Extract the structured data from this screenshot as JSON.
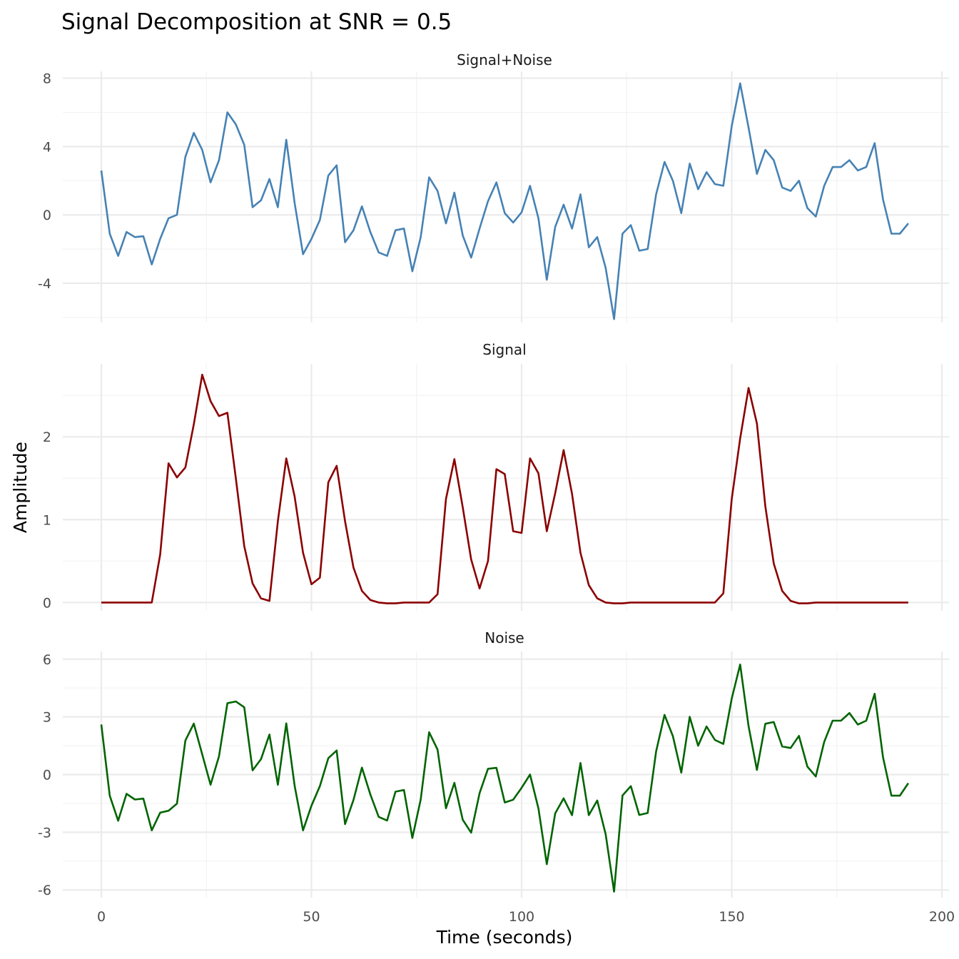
{
  "title": "Signal Decomposition at SNR = 0.5",
  "xlabel": "Time (seconds)",
  "ylabel": "Amplitude",
  "chart_data": [
    {
      "type": "line",
      "strip": "Signal+Noise",
      "color": "#4682B4",
      "x_start": 0,
      "x_step": 2,
      "xlim": [
        0,
        200
      ],
      "xticks": [
        0,
        50,
        100,
        150,
        200
      ],
      "ylim": [
        -6.3,
        8.4
      ],
      "yticks": [
        -4,
        0,
        4,
        8
      ],
      "yminor": [
        -6,
        -2,
        2,
        6
      ],
      "values": [
        2.6,
        -1.1,
        -2.4,
        -1.0,
        -1.3,
        -1.25,
        -2.9,
        -1.4,
        -0.2,
        0.0,
        3.4,
        4.8,
        3.8,
        1.9,
        3.2,
        6.0,
        5.3,
        4.1,
        0.45,
        0.85,
        2.1,
        0.45,
        4.4,
        0.7,
        -2.3,
        -1.4,
        -0.3,
        2.3,
        2.9,
        -1.6,
        -0.9,
        0.5,
        -1.0,
        -2.2,
        -2.4,
        -0.9,
        -0.8,
        -3.3,
        -1.3,
        2.2,
        1.4,
        -0.5,
        1.3,
        -1.2,
        -2.5,
        -0.8,
        0.8,
        1.9,
        0.1,
        -0.45,
        0.15,
        1.7,
        -0.2,
        -3.8,
        -0.7,
        0.6,
        -0.8,
        1.2,
        -1.9,
        -1.3,
        -3.1,
        -6.1,
        -1.1,
        -0.6,
        -2.1,
        -2.0,
        1.2,
        3.1,
        2.0,
        0.1,
        3.0,
        1.5,
        2.5,
        1.8,
        1.7,
        5.2,
        7.7,
        5.1,
        2.4,
        3.8,
        3.2,
        1.6,
        1.4,
        2.0,
        0.4,
        -0.1,
        1.7,
        2.8,
        2.8,
        3.2,
        2.6,
        2.8,
        4.2,
        0.9,
        -1.1,
        -1.1,
        -0.5
      ]
    },
    {
      "type": "line",
      "strip": "Signal",
      "color": "#8B0000",
      "x_start": 0,
      "x_step": 2,
      "xlim": [
        0,
        200
      ],
      "xticks": [
        0,
        50,
        100,
        150,
        200
      ],
      "ylim": [
        -0.1,
        2.88
      ],
      "yticks": [
        0,
        1,
        2
      ],
      "yminor": [
        0.5,
        1.5,
        2.5
      ],
      "values": [
        0,
        0,
        0,
        0,
        0,
        0,
        0,
        0.58,
        1.68,
        1.51,
        1.63,
        2.15,
        2.75,
        2.43,
        2.25,
        2.29,
        1.5,
        0.68,
        0.23,
        0.05,
        0.02,
        0.98,
        1.74,
        1.28,
        0.6,
        0.22,
        0.3,
        1.45,
        1.65,
        0.98,
        0.42,
        0.14,
        0.03,
        0.0,
        -0.01,
        -0.01,
        0,
        0,
        0,
        0,
        0.1,
        1.25,
        1.73,
        1.15,
        0.52,
        0.17,
        0.5,
        1.61,
        1.55,
        0.86,
        0.84,
        1.74,
        1.56,
        0.86,
        1.32,
        1.84,
        1.31,
        0.6,
        0.21,
        0.05,
        0.0,
        -0.01,
        -0.01,
        0,
        0,
        0,
        0,
        0,
        0,
        0,
        0,
        0,
        0,
        0,
        0.11,
        1.25,
        1.98,
        2.59,
        2.16,
        1.16,
        0.47,
        0.14,
        0.02,
        -0.01,
        -0.01,
        0,
        0,
        0,
        0,
        0,
        0,
        0,
        0,
        0,
        0,
        0,
        0
      ]
    },
    {
      "type": "line",
      "strip": "Noise",
      "color": "#006400",
      "x_start": 0,
      "x_step": 2,
      "xlim": [
        0,
        200
      ],
      "xticks": [
        0,
        50,
        100,
        150,
        200
      ],
      "ylim": [
        -6.4,
        6.4
      ],
      "yticks": [
        -6,
        -3,
        0,
        3,
        6
      ],
      "yminor": [
        -4.5,
        -1.5,
        1.5,
        4.5
      ],
      "values": [
        2.6,
        -1.1,
        -2.4,
        -1.0,
        -1.3,
        -1.25,
        -2.9,
        -1.98,
        -1.88,
        -1.51,
        1.77,
        2.65,
        1.05,
        -0.53,
        0.95,
        3.71,
        3.8,
        3.5,
        0.22,
        0.8,
        2.08,
        -0.53,
        2.66,
        -0.58,
        -2.9,
        -1.62,
        -0.6,
        0.85,
        1.25,
        -2.58,
        -1.32,
        0.36,
        -1.03,
        -2.2,
        -2.39,
        -0.89,
        -0.8,
        -3.3,
        -1.3,
        2.2,
        1.3,
        -1.75,
        -0.43,
        -2.35,
        -3.02,
        -0.97,
        0.3,
        0.35,
        -1.45,
        -1.31,
        -0.69,
        0.0,
        -1.76,
        -4.66,
        -2.02,
        -1.24,
        -2.11,
        0.6,
        -2.11,
        -1.35,
        -3.1,
        -6.09,
        -1.09,
        -0.6,
        -2.1,
        -2.0,
        1.2,
        3.1,
        2.0,
        0.1,
        3.0,
        1.5,
        2.5,
        1.8,
        1.59,
        3.95,
        5.72,
        2.51,
        0.24,
        2.64,
        2.73,
        1.46,
        1.38,
        2.01,
        0.41,
        -0.1,
        1.7,
        2.8,
        2.8,
        3.2,
        2.6,
        2.8,
        4.2,
        0.9,
        -1.1,
        -1.1,
        -0.45
      ]
    }
  ]
}
